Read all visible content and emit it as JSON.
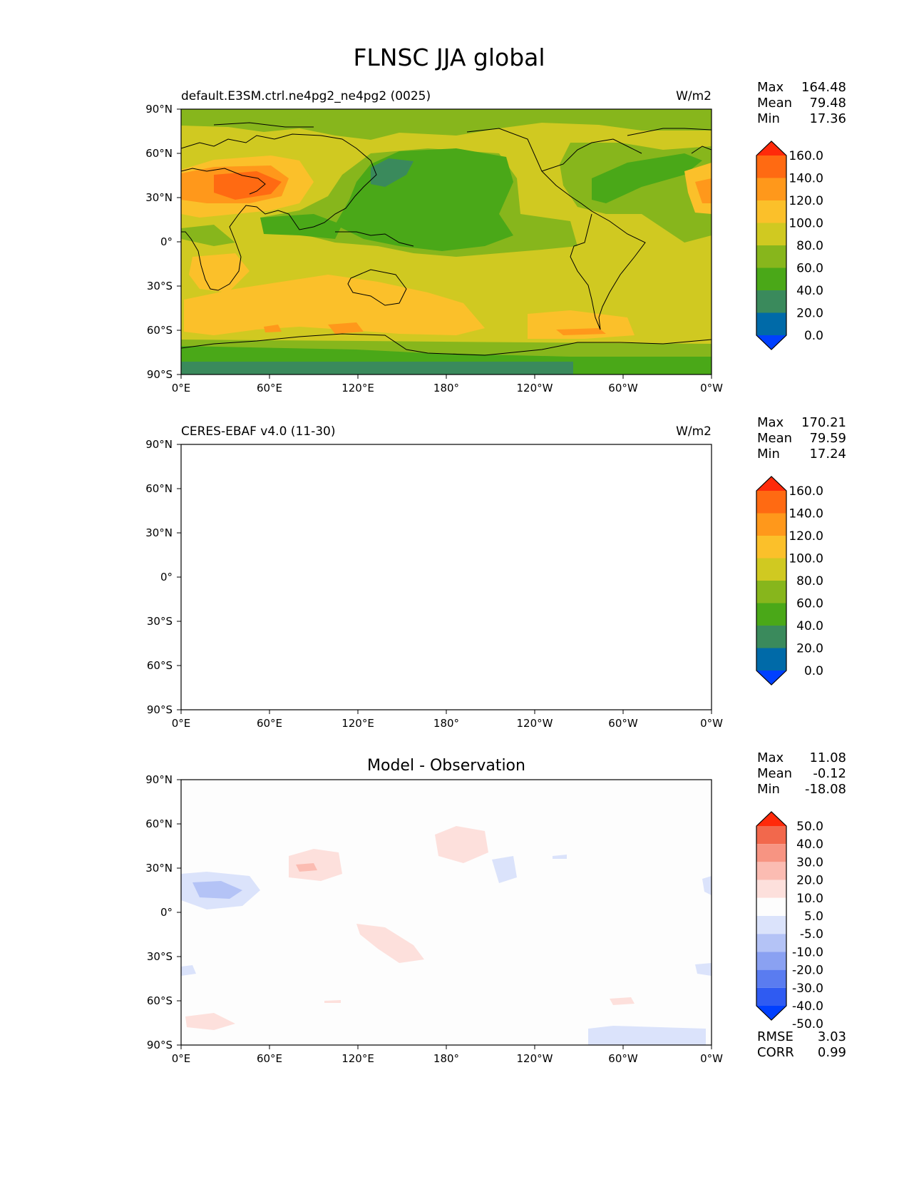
{
  "figure": {
    "title": "FLNSC JJA global"
  },
  "colors": {
    "reference_levels": [
      "#0040ff",
      "#006aa8",
      "#3a8a5c",
      "#4aa818",
      "#87b61c",
      "#d0c921",
      "#fbc02a",
      "#ff981b",
      "#ff6a12",
      "#ff2a0a"
    ],
    "diff_levels": [
      "#0040ff",
      "#2f5bf2",
      "#5a7cf0",
      "#8aa1f2",
      "#b4c3f6",
      "#dbe3fb",
      "#fdfdfd",
      "#fde0dc",
      "#fbbcb2",
      "#f79482",
      "#f2684c",
      "#ff2a0a"
    ],
    "coastline": "#000000"
  },
  "chart_data": [
    {
      "type": "heatmap",
      "title": "",
      "left_title": "default.E3SM.ctrl.ne4pg2_ne4pg2 (0025)",
      "right_title": "W/m2",
      "x_ticks": [
        "0°E",
        "60°E",
        "120°E",
        "180°",
        "120°W",
        "60°W",
        "0°W"
      ],
      "y_ticks": [
        "90°N",
        "60°N",
        "30°N",
        "0°",
        "30°S",
        "60°S",
        "90°S"
      ],
      "xlim": [
        0,
        360
      ],
      "ylim": [
        -90,
        90
      ],
      "stats": [
        {
          "label": "Max",
          "value": "164.48"
        },
        {
          "label": "Mean",
          "value": "79.48"
        },
        {
          "label": "Min",
          "value": "17.36"
        }
      ],
      "colorbar_labels": [
        "160.0",
        "140.0",
        "120.0",
        "100.0",
        "80.0",
        "60.0",
        "40.0",
        "20.0",
        "0.0"
      ]
    },
    {
      "type": "heatmap",
      "title": "",
      "left_title": "CERES-EBAF v4.0 (11-30)",
      "right_title": "W/m2",
      "x_ticks": [
        "0°E",
        "60°E",
        "120°E",
        "180°",
        "120°W",
        "60°W",
        "0°W"
      ],
      "y_ticks": [
        "90°N",
        "60°N",
        "30°N",
        "0°",
        "30°S",
        "60°S",
        "90°S"
      ],
      "xlim": [
        0,
        360
      ],
      "ylim": [
        -90,
        90
      ],
      "stats": [
        {
          "label": "Max",
          "value": "170.21"
        },
        {
          "label": "Mean",
          "value": "79.59"
        },
        {
          "label": "Min",
          "value": "17.24"
        }
      ],
      "colorbar_labels": [
        "160.0",
        "140.0",
        "120.0",
        "100.0",
        "80.0",
        "60.0",
        "40.0",
        "20.0",
        "0.0"
      ]
    },
    {
      "type": "heatmap",
      "title": "Model - Observation",
      "left_title": "",
      "right_title": "",
      "x_ticks": [
        "0°E",
        "60°E",
        "120°E",
        "180°",
        "120°W",
        "60°W",
        "0°W"
      ],
      "y_ticks": [
        "90°N",
        "60°N",
        "30°N",
        "0°",
        "30°S",
        "60°S",
        "90°S"
      ],
      "xlim": [
        0,
        360
      ],
      "ylim": [
        -90,
        90
      ],
      "stats": [
        {
          "label": "Max",
          "value": "11.08"
        },
        {
          "label": "Mean",
          "value": "-0.12"
        },
        {
          "label": "Min",
          "value": "-18.08"
        }
      ],
      "colorbar_labels": [
        "50.0",
        "40.0",
        "30.0",
        "20.0",
        "10.0",
        "5.0",
        "-5.0",
        "-10.0",
        "-20.0",
        "-30.0",
        "-40.0",
        "-50.0"
      ],
      "metrics": [
        {
          "label": "RMSE",
          "value": "3.03"
        },
        {
          "label": "CORR",
          "value": "0.99"
        }
      ]
    }
  ]
}
